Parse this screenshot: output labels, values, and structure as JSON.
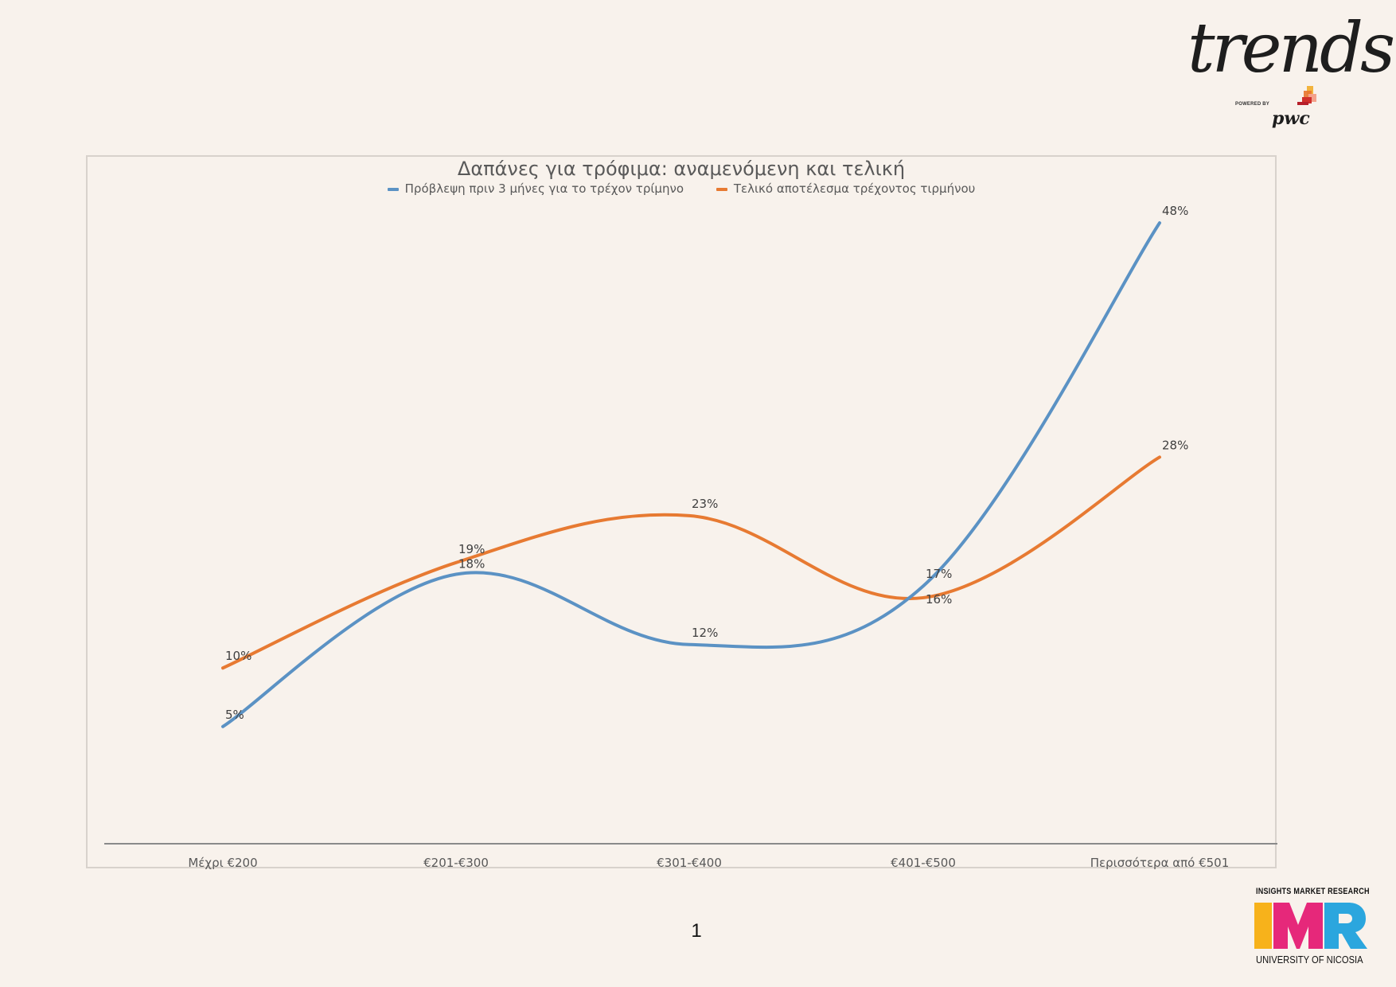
{
  "logos": {
    "trends_text": "trends",
    "powered_by": "POWERED BY",
    "pwc_text": "pwc",
    "imr_top": "INSIGHTS MARKET RESEARCH",
    "imr_bottom": "UNIVERSITY OF NICOSIA",
    "imr_letters": [
      "I",
      "M",
      "R"
    ]
  },
  "page_number": "1",
  "colors": {
    "background": "#f8f2ec",
    "series_blue": "#5b92c4",
    "series_orange": "#e77a32",
    "imr_i": "#f7b21b",
    "imr_m": "#e6287a",
    "imr_r": "#2ba6de"
  },
  "chart_data": {
    "type": "line",
    "title": "Δαπάνες για τρόφιμα: αναμενόμενη και τελική",
    "categories": [
      "Μέχρι €200",
      "€201-€300",
      "€301-€400",
      "€401-€500",
      "Περισσότερα από €501"
    ],
    "series": [
      {
        "name": "Πρόβλεψη πριν 3 μήνες για το τρέχον τρίμηνο",
        "values": [
          5,
          18,
          12,
          17,
          48
        ],
        "labels": [
          "5%",
          "18%",
          "12%",
          "17%",
          "48%"
        ],
        "color": "#5b92c4"
      },
      {
        "name": "Τελικό αποτέλεσμα τρέχοντος τιρμήνου",
        "values": [
          10,
          19,
          23,
          16,
          28
        ],
        "labels": [
          "10%",
          "19%",
          "23%",
          "16%",
          "28%"
        ],
        "color": "#e77a32"
      }
    ],
    "ylim": [
      -5,
      48
    ],
    "smooth": true,
    "legend_position": "top",
    "grid": false
  }
}
